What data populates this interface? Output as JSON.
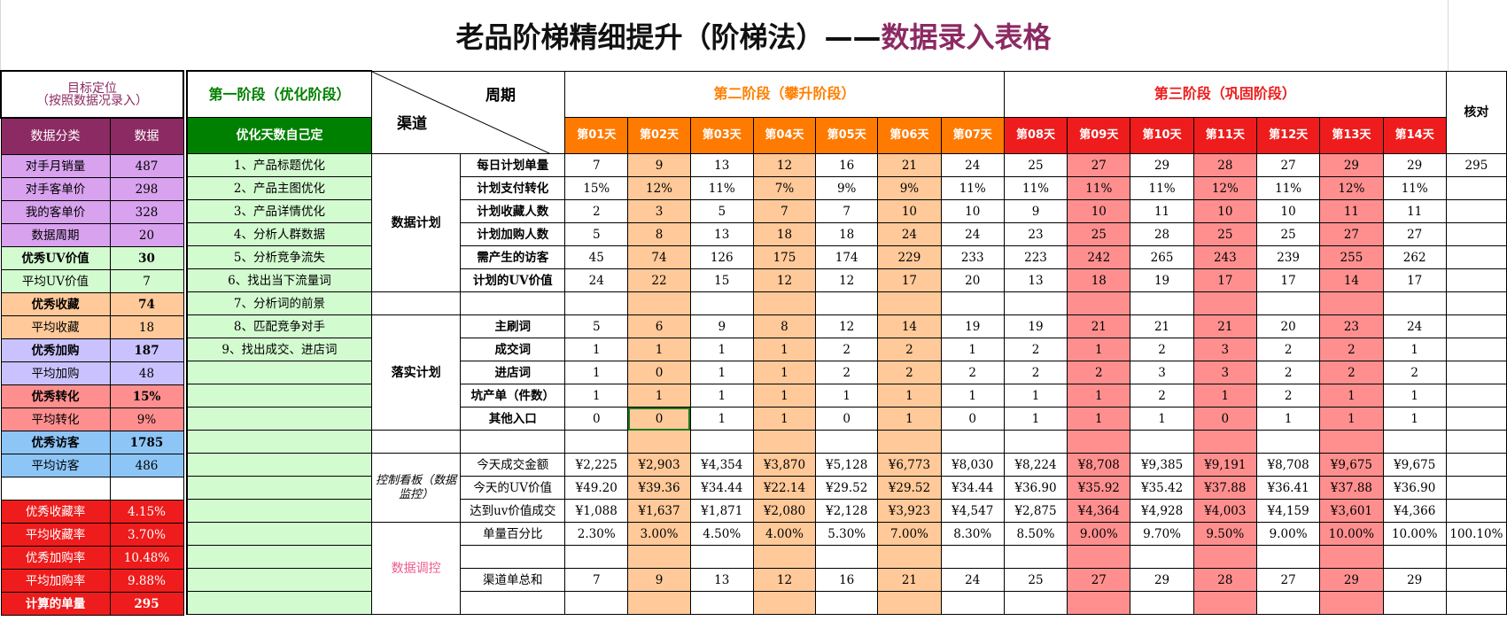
{
  "title": {
    "part1": "老品阶梯精细提升（阶梯法）——",
    "part2": "数据录入表格"
  },
  "left": {
    "header": "目标定位\n（按照数据况录入）",
    "col1": "数据分类",
    "col2": "数据",
    "rows": [
      {
        "label": "对手月销量",
        "value": "487",
        "lbg": "#d8a2ee",
        "vbg": "#d8a2ee",
        "bold": false,
        "color": "#000"
      },
      {
        "label": "对手客单价",
        "value": "298",
        "lbg": "#d8a2ee",
        "vbg": "#d8a2ee",
        "bold": false,
        "color": "#000"
      },
      {
        "label": "我的客单价",
        "value": "328",
        "lbg": "#d8a2ee",
        "vbg": "#d8a2ee",
        "bold": false,
        "color": "#000"
      },
      {
        "label": "数据周期",
        "value": "20",
        "lbg": "#d8a2ee",
        "vbg": "#d8a2ee",
        "bold": false,
        "color": "#000"
      },
      {
        "label": "优秀UV价值",
        "value": "30",
        "lbg": "#d3fbd0",
        "vbg": "#d3fbd0",
        "bold": true,
        "color": "#000"
      },
      {
        "label": "平均UV价值",
        "value": "7",
        "lbg": "#d3fbd0",
        "vbg": "#d3fbd0",
        "bold": false,
        "color": "#000"
      },
      {
        "label": "优秀收藏",
        "value": "74",
        "lbg": "#ffc999",
        "vbg": "#ffc999",
        "bold": true,
        "color": "#000"
      },
      {
        "label": "平均收藏",
        "value": "18",
        "lbg": "#ffc999",
        "vbg": "#ffc999",
        "bold": false,
        "color": "#000"
      },
      {
        "label": "优秀加购",
        "value": "187",
        "lbg": "#c9c2ff",
        "vbg": "#c9c2ff",
        "bold": true,
        "color": "#000"
      },
      {
        "label": "平均加购",
        "value": "48",
        "lbg": "#c9c2ff",
        "vbg": "#c9c2ff",
        "bold": false,
        "color": "#000"
      },
      {
        "label": "优秀转化",
        "value": "15%",
        "lbg": "#ff8f8f",
        "vbg": "#ff8f8f",
        "bold": true,
        "color": "#000"
      },
      {
        "label": "平均转化",
        "value": "9%",
        "lbg": "#ff8f8f",
        "vbg": "#ff8f8f",
        "bold": false,
        "color": "#000"
      },
      {
        "label": "优秀访客",
        "value": "1785",
        "lbg": "#8dc5f7",
        "vbg": "#8dc5f7",
        "bold": true,
        "color": "#000"
      },
      {
        "label": "平均访客",
        "value": "486",
        "lbg": "#8dc5f7",
        "vbg": "#8dc5f7",
        "bold": false,
        "color": "#000"
      },
      {
        "label": "",
        "value": "",
        "lbg": "#ffffff",
        "vbg": "#ffffff",
        "bold": false,
        "color": "#000"
      },
      {
        "label": "优秀收藏率",
        "value": "4.15%",
        "lbg": "#ee1c1c",
        "vbg": "#ee1c1c",
        "bold": false,
        "color": "#fff"
      },
      {
        "label": "平均收藏率",
        "value": "3.70%",
        "lbg": "#ee1c1c",
        "vbg": "#ee1c1c",
        "bold": false,
        "color": "#fff"
      },
      {
        "label": "优秀加购率",
        "value": "10.48%",
        "lbg": "#ee1c1c",
        "vbg": "#ee1c1c",
        "bold": false,
        "color": "#fff"
      },
      {
        "label": "平均加购率",
        "value": "9.88%",
        "lbg": "#ee1c1c",
        "vbg": "#ee1c1c",
        "bold": false,
        "color": "#fff"
      },
      {
        "label": "计算的单量",
        "value": "295",
        "lbg": "#ee1c1c",
        "vbg": "#ee1c1c",
        "bold": true,
        "color": "#fff"
      }
    ]
  },
  "stage1": {
    "title": "第一阶段（优化阶段）",
    "sub": "优化天数自己定",
    "items": [
      "1、产品标题优化",
      "2、产品主图优化",
      "3、产品详情优化",
      "4、分析人群数据",
      "5、分析竞争流失",
      "6、找出当下流量词",
      "7、分析词的前景",
      "8、匹配竞争对手",
      "9、找出成交、进店词"
    ]
  },
  "diag": {
    "period": "周期",
    "channel": "渠道"
  },
  "stage2": {
    "title": "第二阶段（攀升阶段）"
  },
  "stage3": {
    "title": "第三阶段（巩固阶段）"
  },
  "check": "核对",
  "days": [
    "第01天",
    "第02天",
    "第03天",
    "第04天",
    "第05天",
    "第06天",
    "第07天",
    "第08天",
    "第09天",
    "第10天",
    "第11天",
    "第12天",
    "第13天",
    "第14天"
  ],
  "colors": {
    "stage1": "#008000",
    "stage2": "#ff7f00",
    "stage3": "#ee1c1c",
    "dayOrange": "#ff7a00",
    "dayRed": "#ee1c1c",
    "hlOrange": "#ffc999",
    "hlRed": "#ff8f8f",
    "light": "#d3fbd0"
  },
  "groups": {
    "plan": "数据计划",
    "exec": "落实计划",
    "board": "控制看板（数据监控）",
    "adjust": "数据调控"
  },
  "rows": [
    {
      "label": "每日计划单量",
      "cells": [
        "7",
        "9",
        "13",
        "12",
        "16",
        "21",
        "24",
        "25",
        "27",
        "29",
        "28",
        "27",
        "29",
        "29"
      ],
      "check": "295"
    },
    {
      "label": "计划支付转化",
      "cells": [
        "15%",
        "12%",
        "11%",
        "7%",
        "9%",
        "9%",
        "11%",
        "11%",
        "11%",
        "11%",
        "12%",
        "11%",
        "12%",
        "11%"
      ],
      "check": ""
    },
    {
      "label": "计划收藏人数",
      "cells": [
        "2",
        "3",
        "5",
        "7",
        "7",
        "10",
        "10",
        "9",
        "10",
        "11",
        "10",
        "10",
        "11",
        "11"
      ],
      "check": ""
    },
    {
      "label": "计划加购人数",
      "cells": [
        "5",
        "8",
        "13",
        "18",
        "18",
        "24",
        "24",
        "23",
        "25",
        "28",
        "25",
        "25",
        "27",
        "27"
      ],
      "check": ""
    },
    {
      "label": "需产生的访客",
      "cells": [
        "45",
        "74",
        "126",
        "175",
        "174",
        "229",
        "233",
        "223",
        "242",
        "265",
        "243",
        "239",
        "255",
        "262"
      ],
      "check": ""
    },
    {
      "label": "计划的UV价值",
      "cells": [
        "24",
        "22",
        "15",
        "12",
        "12",
        "17",
        "20",
        "13",
        "18",
        "19",
        "17",
        "17",
        "14",
        "17"
      ],
      "check": ""
    },
    {
      "label": "",
      "cells": [
        "",
        "",
        "",
        "",
        "",
        "",
        "",
        "",
        "",
        "",
        "",
        "",
        "",
        ""
      ],
      "check": ""
    },
    {
      "label": "主刷词",
      "cells": [
        "5",
        "6",
        "9",
        "8",
        "12",
        "14",
        "19",
        "19",
        "21",
        "21",
        "21",
        "20",
        "23",
        "24"
      ],
      "check": ""
    },
    {
      "label": "成交词",
      "cells": [
        "1",
        "1",
        "1",
        "1",
        "2",
        "2",
        "1",
        "2",
        "1",
        "2",
        "3",
        "2",
        "2",
        "1"
      ],
      "check": ""
    },
    {
      "label": "进店词",
      "cells": [
        "1",
        "0",
        "1",
        "1",
        "2",
        "2",
        "2",
        "2",
        "2",
        "3",
        "3",
        "2",
        "2",
        "2"
      ],
      "check": ""
    },
    {
      "label": "坑产单（件数）",
      "cells": [
        "1",
        "1",
        "1",
        "1",
        "1",
        "1",
        "1",
        "1",
        "1",
        "2",
        "1",
        "2",
        "1",
        "1"
      ],
      "check": ""
    },
    {
      "label": "其他入口",
      "cells": [
        "0",
        "0",
        "1",
        "1",
        "0",
        "1",
        "0",
        "1",
        "1",
        "1",
        "0",
        "1",
        "1",
        "1"
      ],
      "check": ""
    },
    {
      "label": "",
      "cells": [
        "",
        "",
        "",
        "",
        "",
        "",
        "",
        "",
        "",
        "",
        "",
        "",
        "",
        ""
      ],
      "check": ""
    },
    {
      "label": "今天成交金额",
      "cells": [
        "¥2,225",
        "¥2,903",
        "¥4,354",
        "¥3,870",
        "¥5,128",
        "¥6,773",
        "¥8,030",
        "¥8,224",
        "¥8,708",
        "¥9,385",
        "¥9,191",
        "¥8,708",
        "¥9,675",
        "¥9,675"
      ],
      "check": ""
    },
    {
      "label": "今天的UV价值",
      "cells": [
        "¥49.20",
        "¥39.36",
        "¥34.44",
        "¥22.14",
        "¥29.52",
        "¥29.52",
        "¥34.44",
        "¥36.90",
        "¥35.92",
        "¥35.42",
        "¥37.88",
        "¥36.41",
        "¥37.88",
        "¥36.90"
      ],
      "check": ""
    },
    {
      "label": "达到uv价值成交",
      "cells": [
        "¥1,088",
        "¥1,637",
        "¥1,871",
        "¥2,080",
        "¥2,128",
        "¥3,923",
        "¥4,547",
        "¥2,875",
        "¥4,364",
        "¥4,928",
        "¥4,003",
        "¥4,159",
        "¥3,601",
        "¥4,366"
      ],
      "check": ""
    },
    {
      "label": "单量百分比",
      "cells": [
        "2.30%",
        "3.00%",
        "4.50%",
        "4.00%",
        "5.30%",
        "7.00%",
        "8.30%",
        "8.50%",
        "9.00%",
        "9.70%",
        "9.50%",
        "9.00%",
        "10.00%",
        "10.00%"
      ],
      "check": "100.10%"
    },
    {
      "label": "",
      "cells": [
        "",
        "",
        "",
        "",
        "",
        "",
        "",
        "",
        "",
        "",
        "",
        "",
        "",
        ""
      ],
      "check": ""
    },
    {
      "label": "渠道单总和",
      "cells": [
        "7",
        "9",
        "13",
        "12",
        "16",
        "21",
        "24",
        "25",
        "27",
        "29",
        "28",
        "27",
        "29",
        "29"
      ],
      "check": ""
    },
    {
      "label": "",
      "cells": [
        "",
        "",
        "",
        "",
        "",
        "",
        "",
        "",
        "",
        "",
        "",
        "",
        "",
        ""
      ],
      "check": ""
    }
  ]
}
